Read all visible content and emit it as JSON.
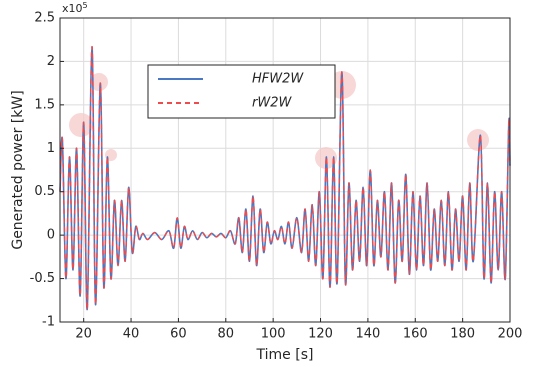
{
  "chart_data": {
    "type": "line",
    "x_label": "Time [s]",
    "y_label": "Generated power [kW]",
    "y_multiplier": {
      "base": "x10",
      "exponent": "5"
    },
    "xlim": [
      10,
      200
    ],
    "xticks": [
      20,
      40,
      60,
      80,
      100,
      120,
      140,
      160,
      180,
      200
    ],
    "ylim": [
      -1,
      2.5
    ],
    "yticks": [
      -1,
      -0.5,
      0,
      0.5,
      1,
      1.5,
      2,
      2.5
    ],
    "grid": true,
    "legend": "top",
    "x": [
      10,
      11,
      12.5,
      14,
      15.5,
      17,
      18.5,
      20,
      21.5,
      23.5,
      25,
      27,
      28.5,
      30,
      31.5,
      33,
      34.5,
      36,
      37.5,
      39,
      40.5,
      42,
      43.5,
      45,
      47,
      50,
      53,
      56,
      58,
      59.5,
      61,
      62.5,
      64,
      66,
      68,
      70,
      72,
      74,
      76,
      78,
      80,
      82,
      84,
      85.5,
      87,
      88.5,
      90,
      91.5,
      93,
      94.5,
      96,
      97.5,
      99,
      100.5,
      102,
      103.5,
      105,
      106.5,
      108,
      110,
      112,
      113.5,
      115,
      116.5,
      118,
      119.5,
      121,
      122.5,
      124,
      125.5,
      127,
      129,
      130.5,
      132,
      133.5,
      135,
      136.5,
      138,
      139.5,
      141,
      142.5,
      144,
      145.5,
      147,
      148.5,
      150,
      151.5,
      153,
      154.5,
      156,
      157.5,
      159,
      160.5,
      162,
      163.5,
      165,
      166.5,
      168,
      169.5,
      171,
      172.5,
      174,
      175.5,
      177,
      178.5,
      180,
      181.5,
      183,
      184.5,
      187.5,
      189,
      190.5,
      192,
      193.5,
      195,
      196.5,
      198,
      199.5,
      200
    ],
    "series": [
      {
        "name": "HFW2W",
        "color": "#4a78c2",
        "dash": false,
        "values": [
          0.5,
          1.1,
          -0.5,
          0.9,
          -0.4,
          1.0,
          -0.7,
          1.3,
          -0.85,
          2.17,
          -0.8,
          1.75,
          -0.6,
          0.9,
          -0.5,
          0.4,
          -0.35,
          0.4,
          -0.3,
          0.55,
          -0.2,
          0.1,
          -0.05,
          0.02,
          -0.05,
          0.03,
          -0.05,
          0.05,
          -0.15,
          0.2,
          -0.15,
          0.1,
          -0.05,
          0.05,
          -0.05,
          0.03,
          -0.03,
          0.02,
          -0.02,
          0.02,
          -0.03,
          0.05,
          -0.1,
          0.2,
          -0.2,
          0.3,
          -0.3,
          0.45,
          -0.35,
          0.3,
          -0.2,
          0.15,
          -0.1,
          0.05,
          -0.05,
          0.1,
          -0.1,
          0.15,
          -0.15,
          0.2,
          -0.2,
          0.3,
          -0.3,
          0.35,
          -0.35,
          0.5,
          -0.5,
          0.9,
          -0.6,
          0.9,
          -0.55,
          1.88,
          -0.55,
          0.6,
          -0.4,
          0.4,
          -0.3,
          0.55,
          -0.35,
          0.75,
          -0.35,
          0.4,
          -0.25,
          0.5,
          -0.4,
          0.6,
          -0.55,
          0.4,
          -0.3,
          0.7,
          -0.45,
          0.5,
          -0.4,
          0.45,
          -0.35,
          0.6,
          -0.4,
          0.3,
          -0.3,
          0.4,
          -0.35,
          0.5,
          -0.4,
          0.3,
          -0.3,
          0.45,
          -0.4,
          0.6,
          -0.3,
          1.15,
          -0.5,
          0.6,
          -0.55,
          0.5,
          -0.4,
          0.5,
          -0.5,
          1.3,
          0.8
        ]
      },
      {
        "name": "rW2W",
        "color": "#f04a4a",
        "dash": true,
        "values": [
          0.5,
          1.1,
          -0.5,
          0.9,
          -0.4,
          1.0,
          -0.7,
          1.3,
          -0.85,
          2.17,
          -0.8,
          1.75,
          -0.6,
          0.9,
          -0.5,
          0.4,
          -0.35,
          0.4,
          -0.3,
          0.55,
          -0.2,
          0.1,
          -0.05,
          0.02,
          -0.05,
          0.03,
          -0.05,
          0.05,
          -0.15,
          0.2,
          -0.15,
          0.1,
          -0.05,
          0.05,
          -0.05,
          0.03,
          -0.03,
          0.02,
          -0.02,
          0.02,
          -0.03,
          0.05,
          -0.1,
          0.2,
          -0.2,
          0.3,
          -0.3,
          0.45,
          -0.35,
          0.3,
          -0.2,
          0.15,
          -0.1,
          0.05,
          -0.05,
          0.1,
          -0.1,
          0.15,
          -0.15,
          0.2,
          -0.2,
          0.3,
          -0.3,
          0.35,
          -0.35,
          0.5,
          -0.5,
          0.9,
          -0.6,
          0.9,
          -0.55,
          1.88,
          -0.55,
          0.6,
          -0.4,
          0.4,
          -0.3,
          0.55,
          -0.35,
          0.75,
          -0.35,
          0.4,
          -0.25,
          0.5,
          -0.4,
          0.6,
          -0.55,
          0.4,
          -0.3,
          0.7,
          -0.45,
          0.5,
          -0.4,
          0.45,
          -0.35,
          0.6,
          -0.4,
          0.3,
          -0.3,
          0.4,
          -0.35,
          0.5,
          -0.4,
          0.3,
          -0.3,
          0.45,
          -0.4,
          0.6,
          -0.3,
          1.15,
          -0.5,
          0.6,
          -0.55,
          0.5,
          -0.4,
          0.5,
          -0.5,
          1.3,
          0.8
        ]
      }
    ]
  }
}
